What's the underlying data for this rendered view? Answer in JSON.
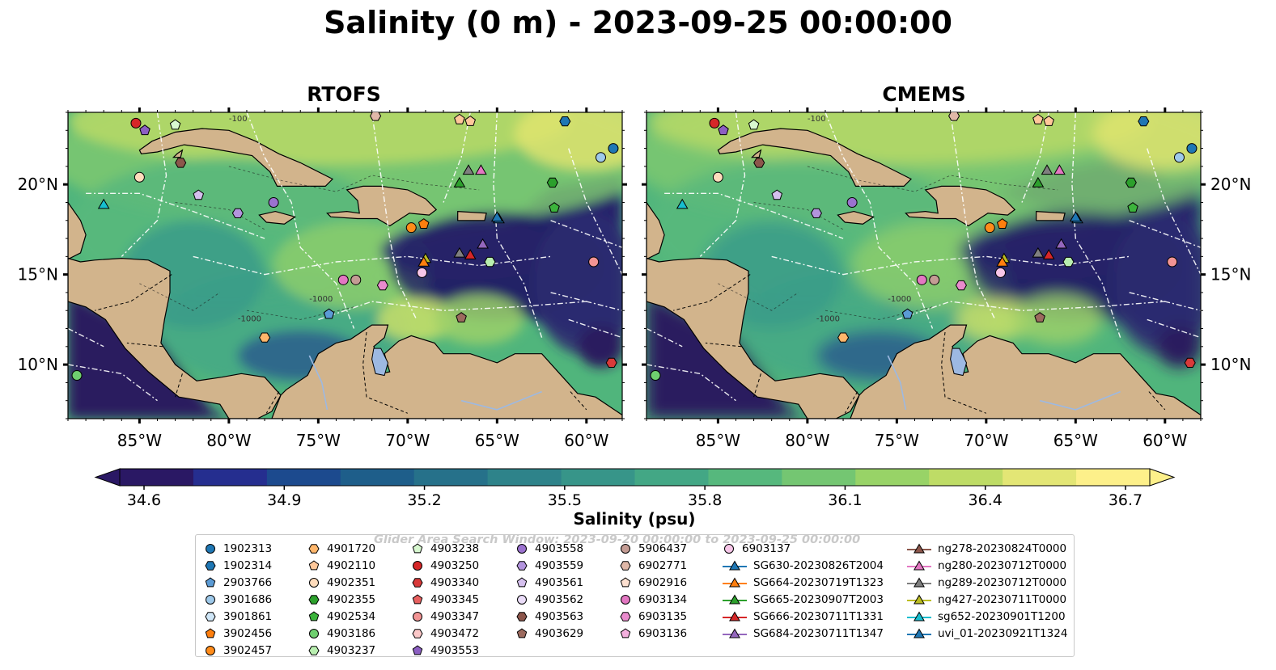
{
  "title": "Salinity (0 m) - 2023-09-25 00:00:00",
  "panels": [
    {
      "title": "RTOFS"
    },
    {
      "title": "CMEMS"
    }
  ],
  "map": {
    "lon_range": [
      -89,
      -58
    ],
    "lat_range": [
      7,
      24
    ],
    "lon_ticks": [
      -85,
      -80,
      -75,
      -70,
      -65,
      -60
    ],
    "lon_tick_labels": [
      "85°W",
      "80°W",
      "75°W",
      "70°W",
      "65°W",
      "60°W"
    ],
    "lat_ticks": [
      10,
      15,
      20
    ],
    "lat_tick_labels": [
      "10°N",
      "15°N",
      "20°N"
    ],
    "land_color": "#d2b48c",
    "low_color": "#2a1a5e",
    "mid_color": "#3a9c8c",
    "high_color": "#e8e870",
    "contour_labels": [
      "-100",
      "-1000"
    ]
  },
  "colorbar": {
    "label": "Salinity (psu)",
    "ticks": [
      "34.6",
      "34.9",
      "35.2",
      "35.5",
      "35.8",
      "36.1",
      "36.4",
      "36.7"
    ],
    "min": 34.6,
    "max": 36.7,
    "extend": "both",
    "colormap": "haline",
    "colors": [
      "#2a1864",
      "#252e8f",
      "#1c4a8e",
      "#1e5e8a",
      "#26718a",
      "#2e838a",
      "#379589",
      "#43a785",
      "#56b87d",
      "#74c672",
      "#98d367",
      "#bedc66",
      "#e3e675",
      "#fdf08a"
    ]
  },
  "watermark": "Glider Area Search Window: 2023-09-20 00:00:00 to 2023-09-25 00:00:00",
  "legend": {
    "columns": [
      [
        {
          "label": "1902313",
          "marker": "circle",
          "color": "#1f77b4"
        },
        {
          "label": "1902314",
          "marker": "hexagon",
          "color": "#1f77b4"
        },
        {
          "label": "2903766",
          "marker": "pentagon",
          "color": "#5b9bd5"
        },
        {
          "label": "3901686",
          "marker": "circle",
          "color": "#9ec9ea"
        },
        {
          "label": "3901861",
          "marker": "hexagon",
          "color": "#cfe6f7"
        },
        {
          "label": "3902456",
          "marker": "pentagon",
          "color": "#ff7f0e"
        },
        {
          "label": "3902457",
          "marker": "circle",
          "color": "#ff8c1a"
        }
      ],
      [
        {
          "label": "4901720",
          "marker": "hexagon",
          "color": "#ffb66b"
        },
        {
          "label": "4902110",
          "marker": "pentagon",
          "color": "#ffc89a"
        },
        {
          "label": "4902351",
          "marker": "circle",
          "color": "#ffdcbc"
        },
        {
          "label": "4902355",
          "marker": "hexagon",
          "color": "#2ca02c"
        },
        {
          "label": "4902534",
          "marker": "pentagon",
          "color": "#3cb43c"
        },
        {
          "label": "4903186",
          "marker": "circle",
          "color": "#6fcf6f"
        },
        {
          "label": "4903237",
          "marker": "hexagon",
          "color": "#b9efb0"
        }
      ],
      [
        {
          "label": "4903238",
          "marker": "pentagon",
          "color": "#d8f8d0"
        },
        {
          "label": "4903250",
          "marker": "circle",
          "color": "#d62728"
        },
        {
          "label": "4903340",
          "marker": "hexagon",
          "color": "#d83a3a"
        },
        {
          "label": "4903345",
          "marker": "pentagon",
          "color": "#e8605f"
        },
        {
          "label": "4903347",
          "marker": "circle",
          "color": "#f29494"
        },
        {
          "label": "4903472",
          "marker": "hexagon",
          "color": "#fbc8c8"
        },
        {
          "label": "4903553",
          "marker": "pentagon",
          "color": "#8c5fc2"
        }
      ],
      [
        {
          "label": "4903558",
          "marker": "circle",
          "color": "#9b72cf"
        },
        {
          "label": "4903559",
          "marker": "hexagon",
          "color": "#b394de"
        },
        {
          "label": "4903561",
          "marker": "pentagon",
          "color": "#d5c0ee"
        },
        {
          "label": "4903562",
          "marker": "circle",
          "color": "#eadcf8"
        },
        {
          "label": "4903563",
          "marker": "hexagon",
          "color": "#8c564b"
        },
        {
          "label": "4903629",
          "marker": "pentagon",
          "color": "#9c6a5e"
        }
      ],
      [
        {
          "label": "5906437",
          "marker": "circle",
          "color": "#c49c94"
        },
        {
          "label": "6902771",
          "marker": "hexagon",
          "color": "#e0b8a8"
        },
        {
          "label": "6902916",
          "marker": "pentagon",
          "color": "#fde0d0"
        },
        {
          "label": "6903134",
          "marker": "circle",
          "color": "#e377c2"
        },
        {
          "label": "6903135",
          "marker": "hexagon",
          "color": "#e98bcd"
        },
        {
          "label": "6903136",
          "marker": "pentagon",
          "color": "#f4b0de"
        }
      ],
      [
        {
          "label": "6903137",
          "marker": "circle",
          "color": "#f7c6e8"
        },
        {
          "label": "SG630-20230826T2004",
          "marker": "triangle-line",
          "color": "#1f77b4"
        },
        {
          "label": "SG664-20230719T1323",
          "marker": "triangle-line",
          "color": "#ff7f0e"
        },
        {
          "label": "SG665-20230907T2003",
          "marker": "triangle-line",
          "color": "#2ca02c"
        },
        {
          "label": "SG666-20230711T1331",
          "marker": "triangle-line",
          "color": "#d62728"
        },
        {
          "label": "SG684-20230711T1347",
          "marker": "triangle-line",
          "color": "#9467bd"
        }
      ],
      [
        {
          "label": "ng278-20230824T0000",
          "marker": "triangle-line",
          "color": "#8c564b"
        },
        {
          "label": "ng280-20230712T0000",
          "marker": "triangle-line",
          "color": "#e377c2"
        },
        {
          "label": "ng289-20230712T0000",
          "marker": "triangle-line",
          "color": "#7f7f7f"
        },
        {
          "label": "ng427-20230711T0000",
          "marker": "triangle-line",
          "color": "#bcbd22"
        },
        {
          "label": "sg652-20230901T1200",
          "marker": "triangle-line",
          "color": "#17becf"
        },
        {
          "label": "uvi_01-20230921T1324",
          "marker": "triangle-line",
          "color": "#1f77b4"
        }
      ]
    ]
  }
}
